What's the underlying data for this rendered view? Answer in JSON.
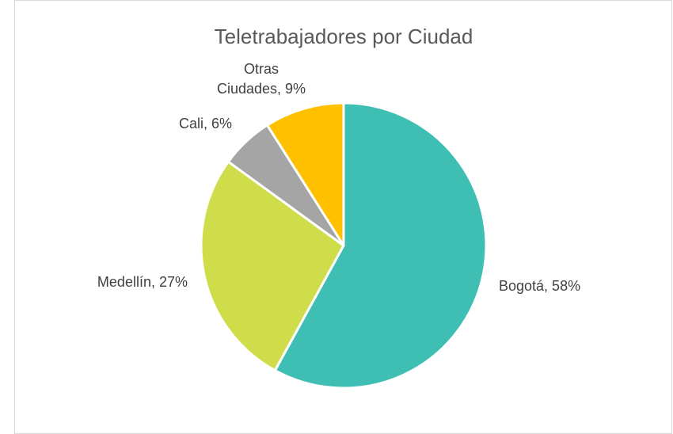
{
  "chart_data": {
    "type": "pie",
    "title": "Teletrabajadores por Ciudad",
    "values": [
      58,
      27,
      6,
      9
    ],
    "value_labels": [
      "Bogotá, 58%",
      "Medellín, 27%",
      "Cali, 6%",
      "Otras Ciudades, 9%"
    ],
    "colors": [
      "#3fbfb4",
      "#cfdd4b",
      "#a5a5a5",
      "#ffc000"
    ]
  }
}
